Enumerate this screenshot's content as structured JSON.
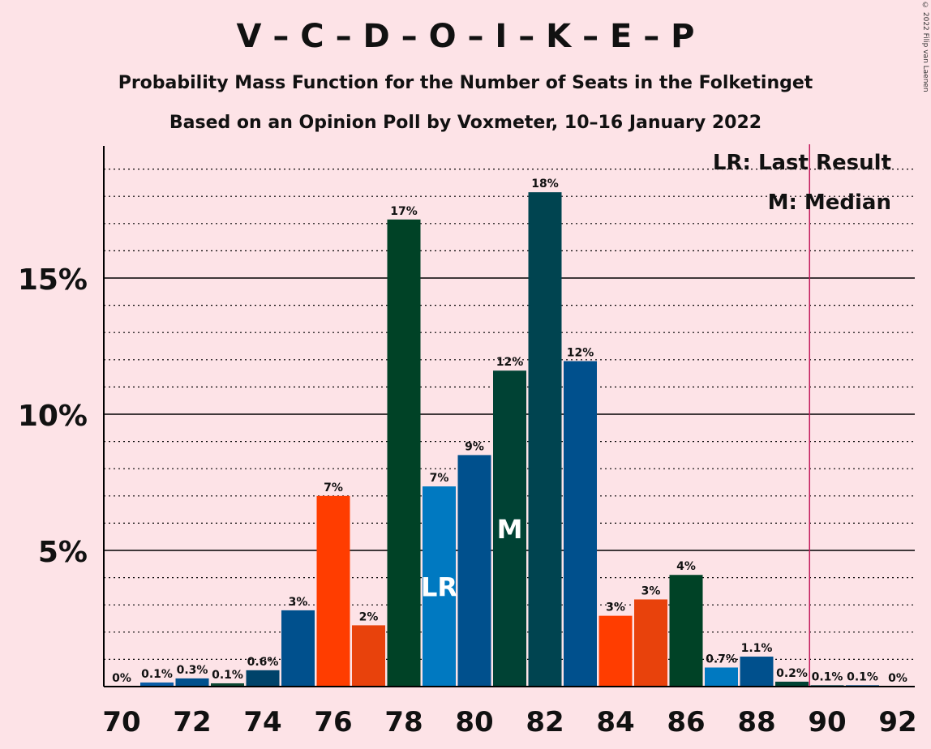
{
  "header": {
    "title": "V – C – D – O – I – K – E – P",
    "subtitle1": "Probability Mass Function for the Number of Seats in the Folketinget",
    "subtitle2": "Based on an Opinion Poll by Voxmeter, 10–16 January 2022",
    "copyright": "© 2022 Filip van Laenen"
  },
  "chart_data": {
    "type": "bar",
    "title": "V – C – D – O – I – K – E – P",
    "subtitle": "Probability Mass Function for the Number of Seats in the Folketinget",
    "x": [
      70,
      71,
      72,
      73,
      74,
      75,
      76,
      77,
      78,
      79,
      80,
      81,
      82,
      83,
      84,
      85,
      86,
      87,
      88,
      89,
      90,
      91,
      92
    ],
    "values": [
      0,
      0.15,
      0.3,
      0.12,
      0.6,
      2.8,
      7.0,
      2.25,
      17.15,
      7.35,
      8.5,
      11.6,
      18.15,
      11.95,
      2.6,
      3.2,
      4.1,
      0.7,
      1.1,
      0.18,
      0.05,
      0.05,
      0
    ],
    "data_labels": [
      "0%",
      "0.1%",
      "0.3%",
      "0.1%",
      "0.6%",
      "3%",
      "7%",
      "2%",
      "17%",
      "7%",
      "9%",
      "12%",
      "18%",
      "12%",
      "3%",
      "3%",
      "4%",
      "0.7%",
      "1.1%",
      "0.2%",
      "0.1%",
      "0.1%",
      "0%"
    ],
    "colors": [
      "#00436a",
      "#0a5ca6",
      "#00508d",
      "#0d4733",
      "#00436a",
      "#00508d",
      "#ff3d00",
      "#e8420c",
      "#004226",
      "#0079c1",
      "#00508d",
      "#004234",
      "#004450",
      "#00508d",
      "#ff3d00",
      "#e8420c",
      "#004226",
      "#0079c1",
      "#00508d",
      "#004234",
      "#004450",
      "#00508d",
      "#ff3d00"
    ],
    "x_ticks": [
      "70",
      "72",
      "74",
      "76",
      "78",
      "80",
      "82",
      "84",
      "86",
      "88",
      "90",
      "92"
    ],
    "y_ticks": [
      "5%",
      "10%",
      "15%"
    ],
    "ylim": [
      0,
      19.7
    ],
    "last_result_seat": 79,
    "median_seat": 81,
    "majority_line_after": 89,
    "lr_marker": "LR",
    "median_marker": "M",
    "legend": {
      "last_result": "LR: Last Result",
      "median": "M: Median"
    },
    "legend_position": "top-right"
  }
}
